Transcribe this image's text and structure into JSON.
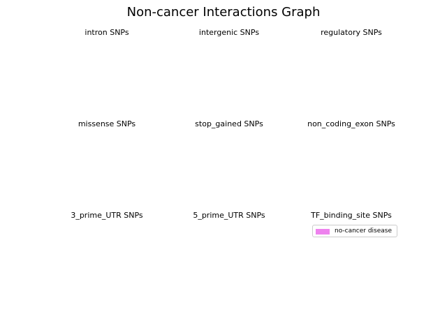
{
  "title": "Non-cancer Interactions Graph",
  "chart_data": {
    "type": "pie",
    "title": "Non-cancer Interactions Graph",
    "layout": "3x3 grid of subplots",
    "subplots": [
      {
        "title": "intron SNPs",
        "values": []
      },
      {
        "title": "intergenic SNPs",
        "values": []
      },
      {
        "title": "regulatory SNPs",
        "values": []
      },
      {
        "title": "missense SNPs",
        "values": []
      },
      {
        "title": "stop_gained SNPs",
        "values": []
      },
      {
        "title": "non_coding_exon SNPs",
        "values": []
      },
      {
        "title": "3_prime_UTR SNPs",
        "values": []
      },
      {
        "title": "5_prime_UTR SNPs",
        "values": []
      },
      {
        "title": "TF_binding_site SNPs",
        "values": []
      }
    ],
    "legend": {
      "placement": "below last subplot title",
      "entries": [
        {
          "label": "no-cancer disease",
          "color": "#ee82ee"
        }
      ]
    },
    "grid": false
  }
}
